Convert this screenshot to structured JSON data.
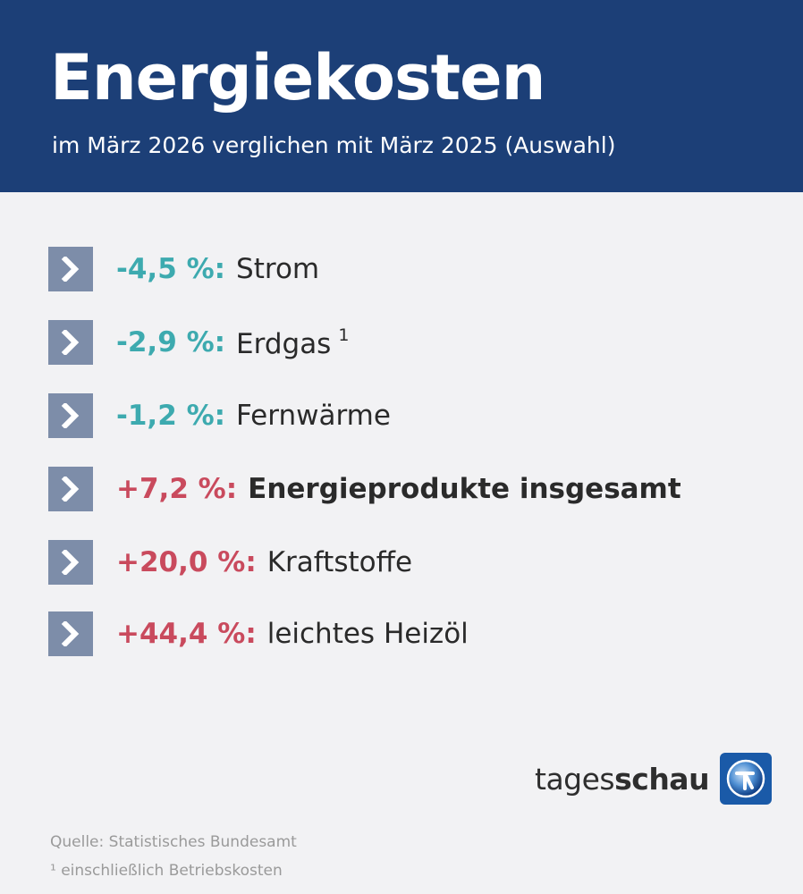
{
  "header": {
    "title": "Energiekosten",
    "subtitle": "im März 2026 verglichen mit März 2025 (Auswahl)"
  },
  "items": [
    {
      "pct": "-4,5 %:",
      "label": "Strom",
      "sup": "",
      "direction": "down"
    },
    {
      "pct": "-2,9 %:",
      "label": "Erdgas",
      "sup": "1",
      "direction": "down"
    },
    {
      "pct": "-1,2 %:",
      "label": "Fernwärme",
      "sup": "",
      "direction": "down"
    },
    {
      "pct": "+7,2 %:",
      "label": "Energieprodukte insgesamt",
      "sup": "",
      "direction": "up"
    },
    {
      "pct": "+20,0 %:",
      "label": "Kraftstoffe",
      "sup": "",
      "direction": "up"
    },
    {
      "pct": "+44,4 %:",
      "label": "leichtes Heizöl",
      "sup": "",
      "direction": "up"
    }
  ],
  "brand": {
    "part1": "tages",
    "part2": "schau",
    "logo_icon": "tagesschau-globe-icon"
  },
  "footer": {
    "source": "Quelle: Statistisches Bundesamt",
    "note": "¹ einschließlich Betriebskosten"
  },
  "colors": {
    "header_bg": "#1c3f77",
    "negative": "#3daaaf",
    "positive": "#c94a5d",
    "chevron_box": "#7d8da9"
  }
}
